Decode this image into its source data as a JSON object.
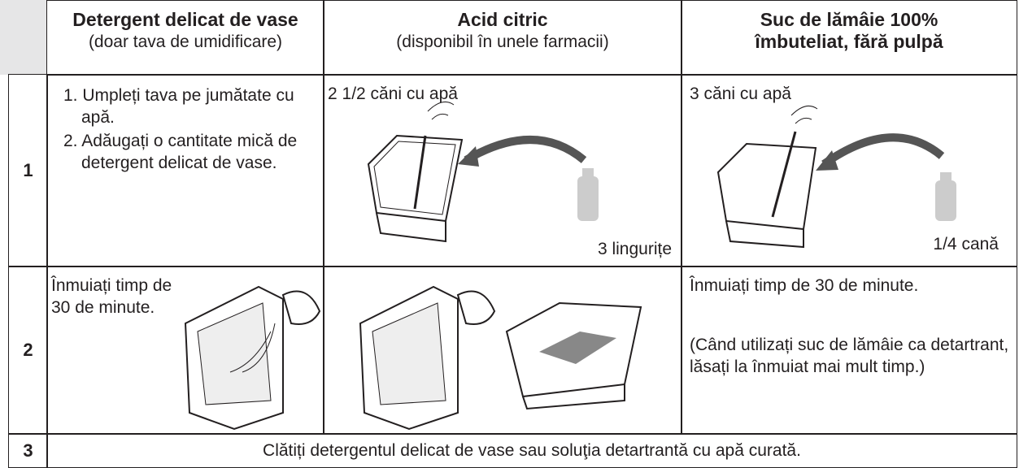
{
  "header": {
    "columns": [
      {
        "title": "Detergent delicat de vase",
        "subtitle": "(doar tava de umidificare)"
      },
      {
        "title": "Acid citric",
        "subtitle": "(disponibil în unele farmacii)"
      },
      {
        "title": "Suc de lămâie 100% îmbuteliat, fără pulpă"
      }
    ]
  },
  "rows": [
    {
      "number": "1",
      "cells": [
        {
          "steps": [
            "1. Umpleți tava pe jumătate cu apă.",
            "2. Adăugați o cantitate mică de detergent delicat de vase."
          ]
        },
        {
          "text": "2 1/2 căni cu apă",
          "label": "3 lingurițe"
        },
        {
          "text": "3 căni cu apă",
          "label": "1/4 cană"
        }
      ]
    },
    {
      "number": "2",
      "cells": [
        {
          "text": "Înmuiați timp de 30 de minute."
        },
        {},
        {
          "text": "Înmuiați timp de 30 de minute.",
          "note": "(Când utilizați suc de lămâie ca detartrant, lăsați la înmuiat mai mult timp.)"
        }
      ]
    },
    {
      "number": "3",
      "text": "Clătiți detergentul delicat de vase sau soluţia detartrantă cu apă curată."
    }
  ]
}
